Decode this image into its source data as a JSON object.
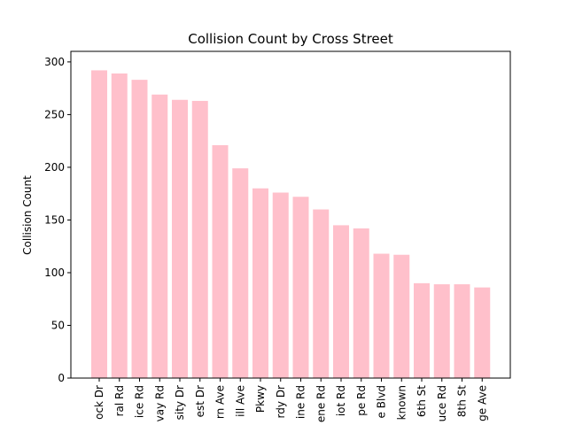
{
  "chart_data": {
    "type": "bar",
    "title": "Collision Count by Cross Street",
    "xlabel": "",
    "ylabel": "Collision Count",
    "ylim": [
      0,
      310
    ],
    "yticks": [
      0,
      50,
      100,
      150,
      200,
      250,
      300
    ],
    "bar_color": "#ffc0cb",
    "grid": false,
    "categories": [
      "ock Dr",
      "ral Rd",
      "ice Rd",
      "vay Rd",
      "sity Dr",
      "est Dr",
      "rn Ave",
      "ill Ave",
      "Pkwy",
      "rdy Dr",
      "ine Rd",
      "ene Rd",
      "iot Rd",
      "pe Rd",
      "e Blvd",
      "known",
      "6th St",
      "uce Rd",
      "8th St",
      "ge Ave"
    ],
    "values": [
      292,
      289,
      283,
      269,
      264,
      263,
      221,
      199,
      180,
      176,
      172,
      160,
      145,
      142,
      118,
      117,
      90,
      89,
      89,
      86
    ]
  }
}
